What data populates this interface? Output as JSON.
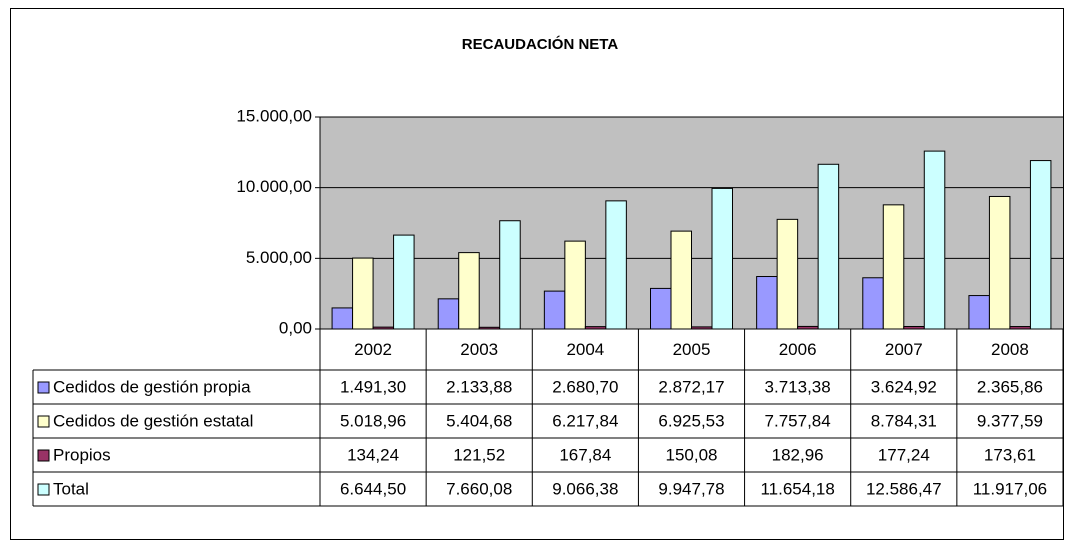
{
  "chart_data": {
    "type": "bar",
    "title": "RECAUDACIÓN NETA",
    "categories": [
      "2002",
      "2003",
      "2004",
      "2005",
      "2006",
      "2007",
      "2008"
    ],
    "series": [
      {
        "name": "Cedidos de gestión propia",
        "color": "#9999ff",
        "values": [
          1491.3,
          2133.88,
          2680.7,
          2872.17,
          3713.38,
          3624.92,
          2365.86
        ],
        "value_labels": [
          "1.491,30",
          "2.133,88",
          "2.680,70",
          "2.872,17",
          "3.713,38",
          "3.624,92",
          "2.365,86"
        ]
      },
      {
        "name": "Cedidos de gestión estatal",
        "color": "#ffffcc",
        "values": [
          5018.96,
          5404.68,
          6217.84,
          6925.53,
          7757.84,
          8784.31,
          9377.59
        ],
        "value_labels": [
          "5.018,96",
          "5.404,68",
          "6.217,84",
          "6.925,53",
          "7.757,84",
          "8.784,31",
          "9.377,59"
        ]
      },
      {
        "name": "Propios",
        "color": "#993366",
        "values": [
          134.24,
          121.52,
          167.84,
          150.08,
          182.96,
          177.24,
          173.61
        ],
        "value_labels": [
          "134,24",
          "121,52",
          "167,84",
          "150,08",
          "182,96",
          "177,24",
          "173,61"
        ]
      },
      {
        "name": "Total",
        "color": "#ccffff",
        "values": [
          6644.5,
          7660.08,
          9066.38,
          9947.78,
          11654.18,
          12586.47,
          11917.06
        ],
        "value_labels": [
          "6.644,50",
          "7.660,08",
          "9.066,38",
          "9.947,78",
          "11.654,18",
          "12.586,47",
          "11.917,06"
        ]
      }
    ],
    "ylim": [
      0,
      15000
    ],
    "yticks": [
      {
        "value": 0,
        "label": "0,00"
      },
      {
        "value": 5000,
        "label": "5.000,00"
      },
      {
        "value": 10000,
        "label": "10.000,00"
      },
      {
        "value": 15000,
        "label": "15.000,00"
      }
    ],
    "grid": true
  }
}
